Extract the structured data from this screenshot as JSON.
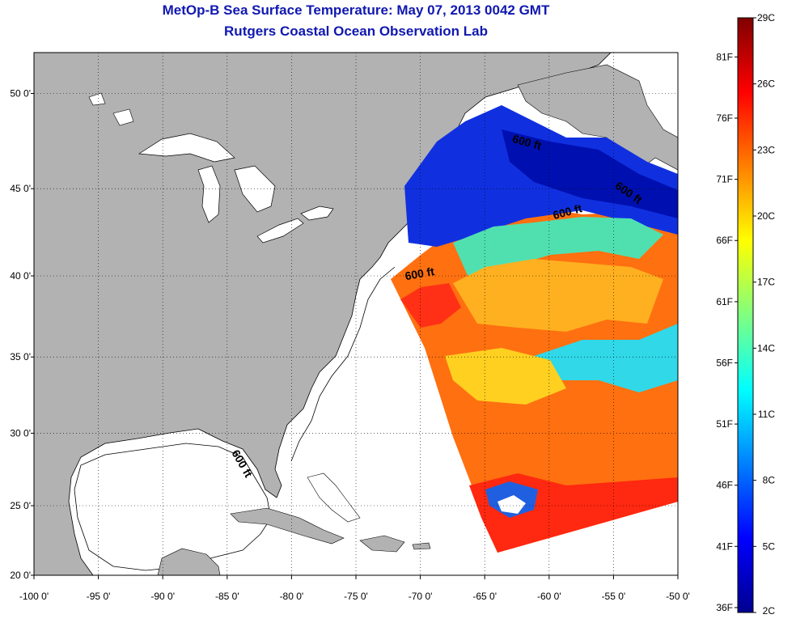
{
  "title": {
    "line1": "MetOp-B Sea Surface Temperature:  May 07, 2013 0042 GMT",
    "line2": "Rutgers Coastal Ocean Observation Lab"
  },
  "map": {
    "lon_range": [
      -100,
      -50
    ],
    "lat_range": [
      20,
      52
    ],
    "grid": true,
    "lon_ticks": [
      {
        "value": -100,
        "label": "-100 0'"
      },
      {
        "value": -95,
        "label": "-95 0'"
      },
      {
        "value": -90,
        "label": "-90 0'"
      },
      {
        "value": -85,
        "label": "-85 0'"
      },
      {
        "value": -80,
        "label": "-80 0'"
      },
      {
        "value": -75,
        "label": "-75 0'"
      },
      {
        "value": -70,
        "label": "-70 0'"
      },
      {
        "value": -65,
        "label": "-65 0'"
      },
      {
        "value": -60,
        "label": "-60 0'"
      },
      {
        "value": -55,
        "label": "-55 0'"
      },
      {
        "value": -50,
        "label": "-50 0'"
      }
    ],
    "lat_ticks": [
      {
        "value": 20,
        "label": "20 0'"
      },
      {
        "value": 25,
        "label": "25 0'"
      },
      {
        "value": 30,
        "label": "30 0'"
      },
      {
        "value": 35,
        "label": "35 0'"
      },
      {
        "value": 40,
        "label": "40 0'"
      },
      {
        "value": 45,
        "label": "45 0'"
      },
      {
        "value": 50,
        "label": "50 0'"
      }
    ],
    "contours": [
      {
        "label": "600 ft",
        "lon": -61.8,
        "lat": 47.3,
        "rotation": 15
      },
      {
        "label": "600 ft",
        "lon": -58.5,
        "lat": 43.5,
        "rotation": -15
      },
      {
        "label": "600 ft",
        "lon": -54.0,
        "lat": 44.6,
        "rotation": 35
      },
      {
        "label": "600 ft",
        "lon": -70.0,
        "lat": 39.9,
        "rotation": -10
      },
      {
        "label": "600 ft",
        "lon": -84.1,
        "lat": 27.8,
        "rotation": 60
      }
    ],
    "colors": {
      "land": "#b2b2b2",
      "water": "#ffffff",
      "grid": "#000000"
    }
  },
  "colorbar": {
    "range_c": [
      2,
      29
    ],
    "celsius_ticks": [
      {
        "value": 29,
        "label": "29C"
      },
      {
        "value": 26,
        "label": "26C"
      },
      {
        "value": 23,
        "label": "23C"
      },
      {
        "value": 20,
        "label": "20C"
      },
      {
        "value": 17,
        "label": "17C"
      },
      {
        "value": 14,
        "label": "14C"
      },
      {
        "value": 11,
        "label": "11C"
      },
      {
        "value": 8,
        "label": "8C"
      },
      {
        "value": 5,
        "label": "5C"
      },
      {
        "value": 2,
        "label": "2C"
      }
    ],
    "fahrenheit_ticks": [
      {
        "value": 81,
        "label": "81F"
      },
      {
        "value": 76,
        "label": "76F"
      },
      {
        "value": 71,
        "label": "71F"
      },
      {
        "value": 66,
        "label": "66F"
      },
      {
        "value": 61,
        "label": "61F"
      },
      {
        "value": 56,
        "label": "56F"
      },
      {
        "value": 51,
        "label": "51F"
      },
      {
        "value": 46,
        "label": "46F"
      },
      {
        "value": 41,
        "label": "41F"
      },
      {
        "value": 36,
        "label": "36F"
      }
    ],
    "stops": [
      "#00008f",
      "#0000ff",
      "#0080ff",
      "#00ffff",
      "#80ff80",
      "#ffff00",
      "#ff8000",
      "#ff0000",
      "#800000"
    ]
  }
}
